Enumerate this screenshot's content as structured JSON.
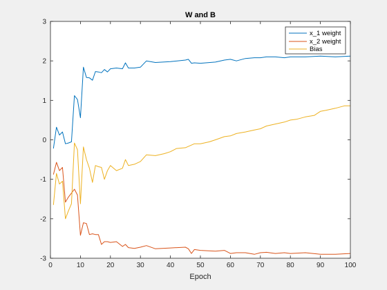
{
  "chart_data": {
    "type": "line",
    "title": "W and B",
    "xlabel": "Epoch",
    "ylabel": "",
    "xlim": [
      0,
      100
    ],
    "ylim": [
      -3,
      3
    ],
    "xticks": [
      0,
      10,
      20,
      30,
      40,
      50,
      60,
      70,
      80,
      90,
      100
    ],
    "yticks": [
      -3,
      -2,
      -1,
      0,
      1,
      2,
      3
    ],
    "grid": false,
    "legend_position": "top-right",
    "series": [
      {
        "name": "x_1 weight",
        "color": "#0072bd",
        "x": [
          1,
          2,
          3,
          4,
          5,
          6,
          7,
          8,
          9,
          10,
          11,
          12,
          13,
          14,
          15,
          16,
          17,
          18,
          19,
          20,
          22,
          24,
          25,
          26,
          28,
          30,
          32,
          35,
          40,
          45,
          46,
          47,
          48,
          50,
          55,
          58,
          60,
          62,
          65,
          68,
          70,
          72,
          75,
          78,
          80,
          85,
          90,
          95,
          100
        ],
        "y": [
          -0.22,
          0.32,
          0.12,
          0.2,
          -0.1,
          -0.08,
          -0.05,
          1.12,
          1.02,
          0.56,
          1.84,
          1.58,
          1.57,
          1.51,
          1.73,
          1.72,
          1.7,
          1.78,
          1.72,
          1.8,
          1.82,
          1.8,
          1.95,
          1.82,
          1.82,
          1.84,
          2.0,
          1.96,
          1.98,
          2.02,
          2.04,
          1.94,
          1.95,
          1.94,
          1.97,
          2.02,
          2.04,
          2.0,
          2.06,
          2.08,
          2.08,
          2.1,
          2.1,
          2.08,
          2.1,
          2.1,
          2.12,
          2.1,
          2.12
        ]
      },
      {
        "name": "x_2 weight",
        "color": "#d95319",
        "x": [
          1,
          2,
          3,
          4,
          5,
          6,
          7,
          8,
          9,
          10,
          11,
          12,
          13,
          14,
          15,
          16,
          17,
          18,
          19,
          20,
          22,
          24,
          25,
          26,
          28,
          30,
          32,
          35,
          40,
          45,
          46,
          47,
          48,
          50,
          55,
          58,
          60,
          62,
          65,
          68,
          70,
          72,
          75,
          78,
          80,
          85,
          90,
          95,
          100
        ],
        "y": [
          -0.88,
          -0.57,
          -0.78,
          -0.7,
          -1.58,
          -1.45,
          -1.35,
          -1.25,
          -1.4,
          -2.42,
          -2.1,
          -2.12,
          -2.4,
          -2.38,
          -2.4,
          -2.4,
          -2.65,
          -2.58,
          -2.58,
          -2.6,
          -2.58,
          -2.7,
          -2.65,
          -2.73,
          -2.75,
          -2.72,
          -2.68,
          -2.76,
          -2.74,
          -2.72,
          -2.76,
          -2.88,
          -2.78,
          -2.8,
          -2.82,
          -2.8,
          -2.88,
          -2.86,
          -2.86,
          -2.9,
          -2.86,
          -2.85,
          -2.88,
          -2.86,
          -2.88,
          -2.86,
          -2.9,
          -2.9,
          -2.88
        ]
      },
      {
        "name": "Bias",
        "color": "#edb120",
        "x": [
          1,
          2,
          3,
          4,
          5,
          6,
          7,
          8,
          9,
          10,
          11,
          12,
          13,
          14,
          15,
          16,
          17,
          18,
          19,
          20,
          22,
          24,
          25,
          26,
          28,
          30,
          32,
          35,
          38,
          40,
          42,
          45,
          48,
          50,
          53,
          55,
          58,
          60,
          62,
          65,
          68,
          70,
          72,
          75,
          78,
          80,
          82,
          85,
          88,
          90,
          92,
          95,
          98,
          100
        ],
        "y": [
          -1.65,
          -0.85,
          -1.12,
          -1.05,
          -2.0,
          -1.8,
          -1.62,
          -0.08,
          -0.25,
          -1.62,
          -0.18,
          -0.5,
          -0.72,
          -1.08,
          -0.65,
          -0.68,
          -0.7,
          -1.0,
          -0.78,
          -0.65,
          -0.78,
          -0.72,
          -0.5,
          -0.65,
          -0.62,
          -0.55,
          -0.38,
          -0.4,
          -0.35,
          -0.3,
          -0.22,
          -0.2,
          -0.1,
          -0.1,
          -0.05,
          0.0,
          0.08,
          0.1,
          0.16,
          0.2,
          0.25,
          0.28,
          0.35,
          0.4,
          0.45,
          0.5,
          0.52,
          0.58,
          0.62,
          0.72,
          0.75,
          0.8,
          0.86,
          0.86
        ]
      }
    ]
  }
}
